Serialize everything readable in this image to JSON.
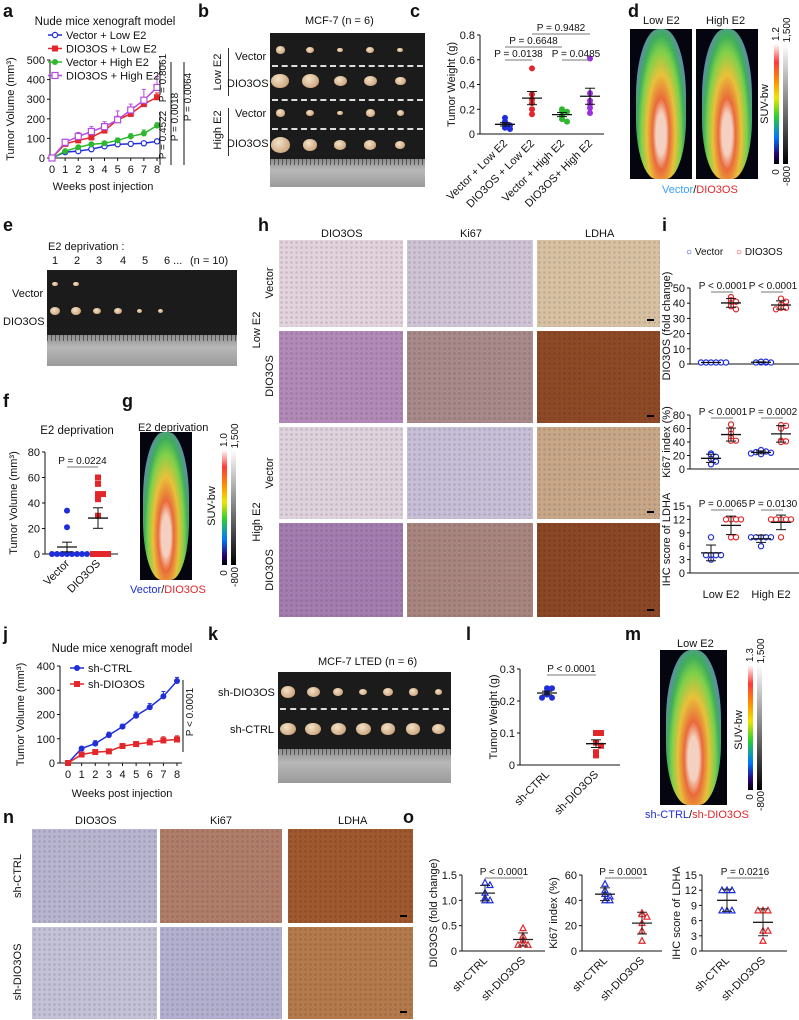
{
  "panel_letters": [
    "a",
    "b",
    "c",
    "d",
    "e",
    "f",
    "g",
    "h",
    "i",
    "j",
    "k",
    "l",
    "m",
    "n",
    "o"
  ],
  "b": {
    "title": "MCF-7  (n = 6)",
    "groups": [
      "Low E2",
      "High E2"
    ],
    "rows": [
      "Vector",
      "DIO3OS",
      "Vector",
      "DIO3OS"
    ]
  },
  "d": {
    "columns": [
      "Low E2",
      "High E2"
    ],
    "caption": [
      "Vector",
      "/",
      "DIO3OS"
    ],
    "caption_colors": [
      "#3aa0ff",
      "#111111",
      "#e3262a"
    ],
    "colorbar": {
      "label": "SUV-bw",
      "top_color": "1.2",
      "top_gray": "1,500",
      "bottom_color": "0",
      "bottom_gray": "-800"
    }
  },
  "e": {
    "title": "E2 deprivation :",
    "numbers": [
      "1",
      "2",
      "3",
      "4",
      "5",
      "6 ..."
    ],
    "n": "(n = 10)",
    "rows": [
      "Vector",
      "DIO3OS"
    ]
  },
  "g": {
    "title": "E2 deprivation",
    "caption": [
      "Vector",
      "/",
      "DIO3OS"
    ],
    "caption_colors": [
      "#1f2ed8",
      "#111111",
      "#e3262a"
    ],
    "colorbar": {
      "label": "SUV-bw",
      "top_color": "1.0",
      "top_gray": "1,500",
      "bottom_color": "0",
      "bottom_gray": "-800"
    }
  },
  "h": {
    "columns": [
      "DIO3OS",
      "Ki67",
      "LDHA"
    ],
    "groups": [
      "Low E2",
      "High E2"
    ],
    "rows": [
      "Vector",
      "DIO3OS",
      "Vector",
      "DIO3OS"
    ]
  },
  "i": {
    "legend": [
      "Vector",
      "DIO3OS"
    ],
    "legend_colors": [
      "#1f2ed8",
      "#e3262a"
    ]
  },
  "k": {
    "title": "MCF-7 LTED  (n = 6)",
    "rows": [
      "sh-DIO3OS",
      "sh-CTRL"
    ]
  },
  "m": {
    "title": "Low E2",
    "caption": [
      "sh-CTRL",
      "/",
      "sh-DIO3OS"
    ],
    "caption_colors": [
      "#1f2ed8",
      "#111111",
      "#e3262a"
    ],
    "colorbar": {
      "label": "SUV-bw",
      "top_color": "1.3",
      "top_gray": "1,500",
      "bottom_color": "0",
      "bottom_gray": "-800"
    }
  },
  "n": {
    "columns": [
      "DIO3OS",
      "Ki67",
      "LDHA"
    ],
    "rows": [
      "sh-CTRL",
      "sh-DIO3OS"
    ]
  },
  "chart_data": [
    {
      "panel": "a",
      "type": "line",
      "title": "Nude mice xenograft model",
      "xlabel": "Weeks post injection",
      "ylabel": "Tumor Volume (mm³)",
      "x": [
        0,
        1,
        2,
        3,
        4,
        5,
        6,
        7,
        8
      ],
      "xticks": [
        "0",
        "1",
        "2",
        "3",
        "4",
        "5",
        "6",
        "7",
        "8"
      ],
      "ylim": [
        0,
        500
      ],
      "yticks": [
        "0",
        "100",
        "200",
        "300",
        "400",
        "500"
      ],
      "series": [
        {
          "name": "Vector + Low E2",
          "color": "#1f2ed8",
          "marker": "circle-open",
          "values": [
            0,
            30,
            35,
            45,
            60,
            70,
            72,
            75,
            85
          ],
          "errors": [
            0,
            5,
            6,
            6,
            8,
            8,
            8,
            9,
            10
          ]
        },
        {
          "name": "DIO3OS + Low E2",
          "color": "#e3262a",
          "marker": "square-filled",
          "values": [
            0,
            72,
            90,
            105,
            140,
            195,
            225,
            275,
            310
          ],
          "errors": [
            0,
            10,
            12,
            12,
            15,
            18,
            18,
            20,
            22
          ]
        },
        {
          "name": "Vector + High E2",
          "color": "#2db82d",
          "marker": "circle-filled",
          "values": [
            0,
            35,
            55,
            70,
            75,
            90,
            110,
            125,
            165
          ],
          "errors": [
            0,
            6,
            8,
            8,
            10,
            12,
            14,
            18,
            15
          ]
        },
        {
          "name": "DIO3OS + High E2",
          "color": "#b44ce0",
          "marker": "square-open",
          "values": [
            0,
            80,
            110,
            135,
            160,
            195,
            245,
            295,
            360
          ],
          "errors": [
            0,
            15,
            20,
            25,
            25,
            45,
            30,
            55,
            55
          ]
        }
      ],
      "annotations": [
        "P = 0.8061",
        "P = 0.4522",
        "P = 0.0018",
        "P = 0.0064"
      ],
      "legend": "top-left"
    },
    {
      "panel": "c",
      "type": "scatter",
      "ylabel": "Tumor Weight (g)",
      "ylim": [
        0,
        0.8
      ],
      "yticks": [
        "0",
        "0.2",
        "0.4",
        "0.6",
        "0.8"
      ],
      "categories": [
        "Vector + Low E2",
        "DIO3OS + Low E2",
        "Vector + High E2",
        "DIO3OS+ High E2"
      ],
      "series": [
        {
          "colors": [
            "#1f2ed8",
            "#e3262a",
            "#2db82d",
            "#9b30e0"
          ],
          "marker": "circle-filled",
          "values": [
            [
              0.13,
              0.1,
              0.08,
              0.07,
              0.05,
              0.04
            ],
            [
              0.53,
              0.32,
              0.28,
              0.25,
              0.2,
              0.16
            ],
            [
              0.2,
              0.19,
              0.18,
              0.15,
              0.12,
              0.1
            ],
            [
              0.61,
              0.33,
              0.27,
              0.24,
              0.21,
              0.17
            ]
          ]
        }
      ],
      "summary": "mean ± SEM",
      "p_values": [
        {
          "text": "P = 0.0138",
          "between": [
            0,
            1
          ]
        },
        {
          "text": "P = 0.6648",
          "between": [
            0,
            2
          ]
        },
        {
          "text": "P = 0.9482",
          "between": [
            1,
            3
          ]
        },
        {
          "text": "P = 0.0485",
          "between": [
            2,
            3
          ]
        }
      ]
    },
    {
      "panel": "f",
      "type": "scatter",
      "title": "E2 deprivation",
      "ylabel": "Tumor Volume (mm³)",
      "ylim": [
        0,
        80
      ],
      "yticks": [
        "0",
        "20",
        "40",
        "60",
        "80"
      ],
      "categories": [
        "Vector",
        "DIO3OS"
      ],
      "series": [
        {
          "colors": [
            "#1f2ed8",
            "#e3262a"
          ],
          "markers": [
            "circle-filled",
            "square-filled"
          ],
          "values": [
            [
              34,
              21,
              0,
              0,
              0,
              0,
              0,
              0,
              0,
              0
            ],
            [
              60,
              55,
              47,
              47,
              43,
              30,
              0,
              0,
              0,
              0
            ]
          ]
        }
      ],
      "summary": "mean ± SEM",
      "p_values": [
        {
          "text": "P = 0.0224",
          "between": [
            0,
            1
          ]
        }
      ]
    },
    {
      "panel": "i",
      "type": "scatter",
      "ylabel": "DIO3OS (fold change)",
      "ylim": [
        0,
        50
      ],
      "yticks": [
        "0",
        "10",
        "20",
        "30",
        "40",
        "50"
      ],
      "categories": [
        "Low E2",
        "High E2"
      ],
      "show_categories": false,
      "series": [
        {
          "name": "Vector",
          "color": "#1f2ed8",
          "marker": "circle-open",
          "values": [
            [
              1,
              1,
              1,
              1,
              1,
              1
            ],
            [
              1,
              1,
              1,
              1.5,
              1.5,
              1
            ]
          ]
        },
        {
          "name": "DIO3OS",
          "color": "#e3262a",
          "marker": "circle-open",
          "values": [
            [
              44,
              42,
              41,
              40,
              38,
              36
            ],
            [
              43,
              41,
              39,
              37,
              37,
              36
            ]
          ]
        }
      ],
      "summary": "mean ± SD",
      "p_values": [
        {
          "text": "P < 0.0001",
          "category": 0
        },
        {
          "text": "P < 0.0001",
          "category": 1
        }
      ]
    },
    {
      "panel": "i",
      "type": "scatter",
      "ylabel": "Ki67 index (%)",
      "ylim": [
        0,
        80
      ],
      "yticks": [
        "0",
        "20",
        "40",
        "60",
        "80"
      ],
      "categories": [
        "Low E2",
        "High E2"
      ],
      "show_categories": false,
      "series": [
        {
          "name": "Vector",
          "color": "#1f2ed8",
          "marker": "circle-open",
          "values": [
            [
              23,
              21,
              18,
              15,
              11,
              7
            ],
            [
              28,
              26,
              25,
              24,
              23,
              22
            ]
          ]
        },
        {
          "name": "DIO3OS",
          "color": "#e3262a",
          "marker": "circle-open",
          "values": [
            [
              66,
              58,
              52,
              46,
              42,
              42
            ],
            [
              65,
              64,
              60,
              42,
              40,
              41
            ]
          ]
        }
      ],
      "summary": "mean ± SD",
      "p_values": [
        {
          "text": "P < 0.0001",
          "category": 0
        },
        {
          "text": "P = 0.0002",
          "category": 1
        }
      ]
    },
    {
      "panel": "i",
      "type": "scatter",
      "ylabel": "IHC score of LDHA",
      "ylim": [
        0,
        15
      ],
      "yticks": [
        "0",
        "3",
        "6",
        "9",
        "12",
        "15"
      ],
      "categories": [
        "Low E2",
        "High E2"
      ],
      "show_categories": true,
      "series": [
        {
          "name": "Vector",
          "color": "#1f2ed8",
          "marker": "circle-open",
          "values": [
            [
              8,
              4,
              4,
              4,
              4,
              3
            ],
            [
              8,
              8,
              8,
              8,
              8,
              6
            ]
          ]
        },
        {
          "name": "DIO3OS",
          "color": "#e3262a",
          "marker": "circle-open",
          "values": [
            [
              12,
              12,
              12,
              8,
              8,
              12
            ],
            [
              12,
              12,
              12,
              12,
              12,
              8
            ]
          ]
        }
      ],
      "summary": "mean ± SD",
      "p_values": [
        {
          "text": "P = 0.0065",
          "category": 0
        },
        {
          "text": "P = 0.0130",
          "category": 1
        }
      ]
    },
    {
      "panel": "j",
      "type": "line",
      "title": "Nude mice xenograft model",
      "xlabel": "Weeks post injection",
      "ylabel": "Tumor Volume (mm³)",
      "x": [
        0,
        1,
        2,
        3,
        4,
        5,
        6,
        7,
        8
      ],
      "xticks": [
        "0",
        "1",
        "2",
        "3",
        "4",
        "5",
        "6",
        "7",
        "8"
      ],
      "ylim": [
        0,
        400
      ],
      "yticks": [
        "0",
        "100",
        "200",
        "300",
        "400"
      ],
      "series": [
        {
          "name": "sh-CTRL",
          "color": "#1f2ed8",
          "marker": "circle-filled",
          "values": [
            0,
            60,
            80,
            115,
            150,
            195,
            230,
            275,
            338
          ],
          "errors": [
            0,
            6,
            12,
            12,
            10,
            15,
            15,
            20,
            15
          ]
        },
        {
          "name": "sh-DIO3OS",
          "color": "#e3262a",
          "marker": "square-filled",
          "values": [
            0,
            35,
            45,
            48,
            70,
            78,
            85,
            93,
            97
          ],
          "errors": [
            0,
            5,
            6,
            8,
            8,
            10,
            15,
            15,
            15
          ]
        }
      ],
      "annotations": [
        "P < 0.0001"
      ],
      "legend": "top-left"
    },
    {
      "panel": "l",
      "type": "scatter",
      "ylabel": "Tumor Weight (g)",
      "ylim": [
        0,
        0.3
      ],
      "yticks": [
        "0",
        "0.1",
        "0.2",
        "0.3"
      ],
      "categories": [
        "sh-CTRL",
        "sh-DIO3OS"
      ],
      "series": [
        {
          "colors": [
            "#1f2ed8",
            "#e3262a"
          ],
          "markers": [
            "circle-filled",
            "square-filled"
          ],
          "values": [
            [
              0.24,
              0.24,
              0.23,
              0.22,
              0.21,
              0.21
            ],
            [
              0.1,
              0.1,
              0.07,
              0.06,
              0.04,
              0.03
            ]
          ]
        }
      ],
      "summary": "mean ± SEM",
      "p_values": [
        {
          "text": "P < 0.0001",
          "between": [
            0,
            1
          ]
        }
      ]
    },
    {
      "panel": "o",
      "type": "scatter",
      "ylabel": "DIO3OS (fold change)",
      "ylim": [
        0,
        1.5
      ],
      "yticks": [
        "0",
        "0.5",
        "1.0",
        "1.5"
      ],
      "categories": [
        "sh-CTRL",
        "sh-DIO3OS"
      ],
      "series": [
        {
          "colors": [
            "#1f2ed8",
            "#e3262a"
          ],
          "marker": "triangle-open",
          "values": [
            [
              1.35,
              1.3,
              1.15,
              1.05,
              1.0,
              1.0
            ],
            [
              0.45,
              0.3,
              0.22,
              0.15,
              0.12,
              0.12
            ]
          ]
        }
      ],
      "summary": "mean ± SD",
      "p_values": [
        {
          "text": "P < 0.0001",
          "between": [
            0,
            1
          ]
        }
      ]
    },
    {
      "panel": "o",
      "type": "scatter",
      "ylabel": "Ki67 index (%)",
      "ylim": [
        0,
        60
      ],
      "yticks": [
        "0",
        "20",
        "40",
        "60"
      ],
      "categories": [
        "sh-CTRL",
        "sh-DIO3OS"
      ],
      "series": [
        {
          "colors": [
            "#1f2ed8",
            "#e3262a"
          ],
          "marker": "triangle-open",
          "values": [
            [
              53,
              48,
              45,
              43,
              40,
              40
            ],
            [
              30,
              29,
              27,
              22,
              16,
              8
            ]
          ]
        }
      ],
      "summary": "mean ± SD",
      "p_values": [
        {
          "text": "P = 0.0001",
          "between": [
            0,
            1
          ]
        }
      ]
    },
    {
      "panel": "o",
      "type": "scatter",
      "ylabel": "IHC score of LDHA",
      "ylim": [
        0,
        15
      ],
      "yticks": [
        "0",
        "3",
        "6",
        "9",
        "12",
        "15"
      ],
      "categories": [
        "sh-CTRL",
        "sh-DIO3OS"
      ],
      "series": [
        {
          "colors": [
            "#1f2ed8",
            "#e3262a"
          ],
          "marker": "triangle-open",
          "values": [
            [
              12,
              12,
              12,
              8,
              8,
              8
            ],
            [
              8,
              8,
              8,
              4,
              4,
              2
            ]
          ]
        }
      ],
      "summary": "mean ± SD",
      "p_values": [
        {
          "text": "P = 0.0216",
          "between": [
            0,
            1
          ]
        }
      ]
    }
  ]
}
